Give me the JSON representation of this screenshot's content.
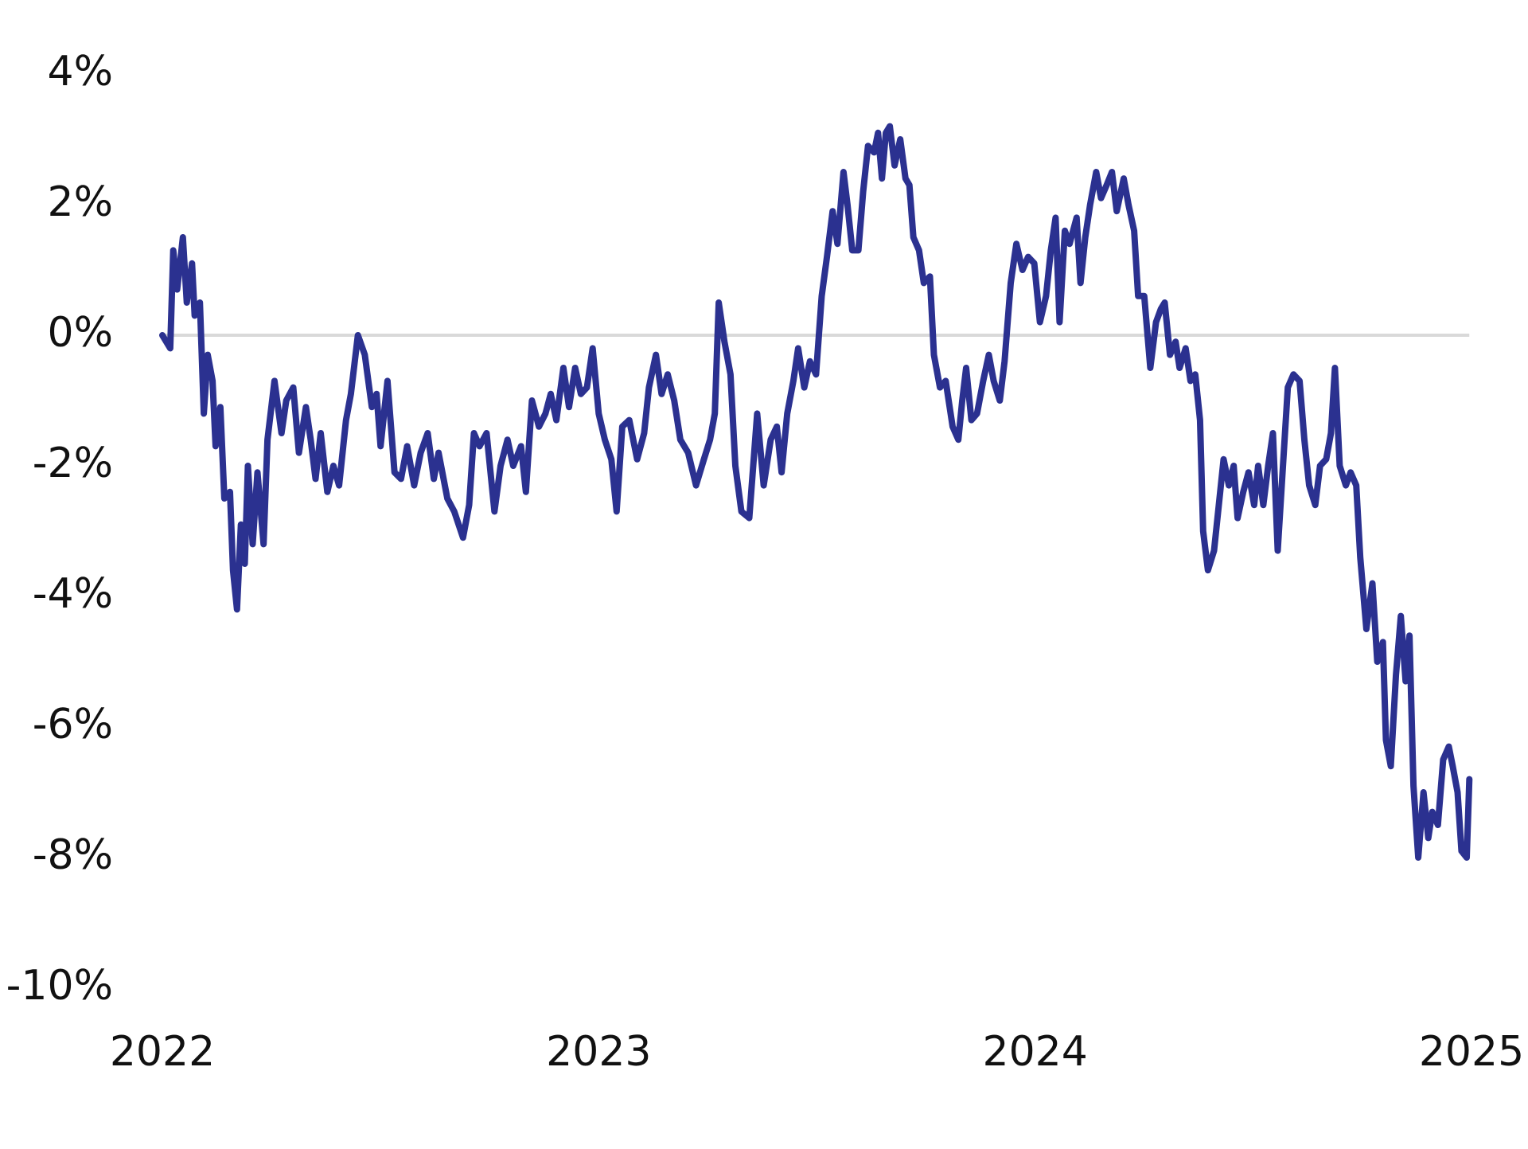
{
  "chart_data": {
    "type": "line",
    "color": "#2b3190",
    "hline": 0,
    "xlim": [
      2022,
      2025
    ],
    "xticks": [
      2022,
      2023,
      2024,
      2025
    ],
    "ylim": [
      -10,
      4
    ],
    "yticks": [
      {
        "value": 4,
        "label": "4%"
      },
      {
        "value": 2,
        "label": "2%"
      },
      {
        "value": 0,
        "label": "0%"
      },
      {
        "value": -2,
        "label": "-2%"
      },
      {
        "value": -4,
        "label": "-4%"
      },
      {
        "value": -6,
        "label": "-6%"
      },
      {
        "value": -8,
        "label": "-8%"
      },
      {
        "value": -10,
        "label": "-10%"
      }
    ],
    "x": [
      2022.0,
      2022.018,
      2022.025,
      2022.034,
      2022.047,
      2022.056,
      2022.068,
      2022.074,
      2022.086,
      2022.095,
      2022.104,
      2022.115,
      2022.122,
      2022.133,
      2022.142,
      2022.155,
      2022.162,
      2022.171,
      2022.18,
      2022.189,
      2022.196,
      2022.207,
      2022.218,
      2022.232,
      2022.241,
      2022.257,
      2022.273,
      2022.284,
      2022.3,
      2022.313,
      2022.329,
      2022.34,
      2022.351,
      2022.363,
      2022.378,
      2022.392,
      2022.405,
      2022.421,
      2022.432,
      2022.448,
      2022.464,
      2022.48,
      2022.491,
      2022.5,
      2022.516,
      2022.532,
      2022.547,
      2022.561,
      2022.577,
      2022.592,
      2022.608,
      2022.622,
      2022.633,
      2022.653,
      2022.669,
      2022.689,
      2022.703,
      2022.714,
      2022.727,
      2022.743,
      2022.761,
      2022.775,
      2022.791,
      2022.804,
      2022.822,
      2022.833,
      2022.847,
      2022.863,
      2022.878,
      2022.89,
      2022.903,
      2022.919,
      2022.932,
      2022.946,
      2022.959,
      2022.973,
      2022.986,
      2023.0,
      2023.014,
      2023.029,
      2023.041,
      2023.054,
      2023.07,
      2023.088,
      2023.104,
      2023.115,
      2023.131,
      2023.144,
      2023.158,
      2023.173,
      2023.187,
      2023.205,
      2023.223,
      2023.241,
      2023.255,
      2023.266,
      2023.275,
      2023.288,
      2023.302,
      2023.313,
      2023.327,
      2023.345,
      2023.363,
      2023.378,
      2023.394,
      2023.408,
      2023.419,
      2023.432,
      2023.446,
      2023.457,
      2023.471,
      2023.484,
      2023.498,
      2023.511,
      2023.523,
      2023.536,
      2023.547,
      2023.561,
      2023.57,
      2023.581,
      2023.595,
      2023.606,
      2023.617,
      2023.631,
      2023.64,
      2023.649,
      2023.658,
      2023.667,
      2023.678,
      2023.691,
      2023.703,
      2023.712,
      2023.721,
      2023.734,
      2023.745,
      2023.759,
      2023.768,
      2023.782,
      2023.795,
      2023.811,
      2023.824,
      2023.833,
      2023.842,
      2023.854,
      2023.867,
      2023.881,
      2023.894,
      2023.905,
      2023.919,
      2023.93,
      2023.944,
      2023.957,
      2023.971,
      2023.984,
      2023.998,
      2024.011,
      2024.025,
      2024.036,
      2024.047,
      2024.056,
      2024.068,
      2024.079,
      2024.095,
      2024.104,
      2024.115,
      2024.126,
      2024.14,
      2024.151,
      2024.164,
      2024.176,
      2024.187,
      2024.203,
      2024.214,
      2024.227,
      2024.236,
      2024.25,
      2024.264,
      2024.277,
      2024.288,
      2024.297,
      2024.309,
      2024.322,
      2024.331,
      2024.345,
      2024.356,
      2024.367,
      2024.378,
      2024.385,
      2024.396,
      2024.41,
      2024.421,
      2024.432,
      2024.444,
      2024.455,
      2024.464,
      2024.477,
      2024.489,
      2024.502,
      2024.511,
      2024.523,
      2024.534,
      2024.545,
      2024.556,
      2024.568,
      2024.579,
      2024.592,
      2024.606,
      2024.617,
      2024.628,
      2024.642,
      2024.653,
      2024.667,
      2024.678,
      2024.687,
      2024.698,
      2024.712,
      2024.723,
      2024.736,
      2024.745,
      2024.759,
      2024.773,
      2024.784,
      2024.797,
      2024.804,
      2024.815,
      2024.827,
      2024.838,
      2024.849,
      2024.858,
      2024.867,
      2024.878,
      2024.89,
      2024.901,
      2024.91,
      2024.923,
      2024.935,
      2024.948,
      2024.957,
      2024.968,
      2024.977,
      2024.989,
      2024.995
    ],
    "values": [
      0,
      -0.2,
      1.3,
      0.7,
      1.5,
      0.5,
      1.1,
      0.3,
      0.5,
      -1.2,
      -0.3,
      -0.7,
      -1.7,
      -1.1,
      -2.5,
      -2.4,
      -3.6,
      -4.2,
      -2.9,
      -3.5,
      -2.0,
      -3.2,
      -2.1,
      -3.2,
      -1.6,
      -0.7,
      -1.5,
      -1.0,
      -0.8,
      -1.8,
      -1.1,
      -1.6,
      -2.2,
      -1.5,
      -2.4,
      -2.0,
      -2.3,
      -1.3,
      -0.9,
      0,
      -0.3,
      -1.1,
      -0.9,
      -1.7,
      -0.7,
      -2.1,
      -2.2,
      -1.7,
      -2.3,
      -1.8,
      -1.5,
      -2.2,
      -1.8,
      -2.5,
      -2.7,
      -3.1,
      -2.6,
      -1.5,
      -1.7,
      -1.5,
      -2.7,
      -2.0,
      -1.6,
      -2.0,
      -1.7,
      -2.4,
      -1.0,
      -1.4,
      -1.2,
      -0.9,
      -1.3,
      -0.5,
      -1.1,
      -0.5,
      -0.9,
      -0.8,
      -0.2,
      -1.2,
      -1.6,
      -1.9,
      -2.7,
      -1.4,
      -1.3,
      -1.9,
      -1.5,
      -0.8,
      -0.3,
      -0.9,
      -0.6,
      -1.0,
      -1.6,
      -1.8,
      -2.3,
      -1.9,
      -1.6,
      -1.2,
      0.5,
      -0.1,
      -0.6,
      -2.0,
      -2.7,
      -2.8,
      -1.2,
      -2.3,
      -1.6,
      -1.4,
      -2.1,
      -1.2,
      -0.7,
      -0.2,
      -0.8,
      -0.4,
      -0.6,
      0.6,
      1.2,
      1.9,
      1.4,
      2.5,
      2.0,
      1.3,
      1.3,
      2.2,
      2.9,
      2.8,
      3.1,
      2.4,
      3.1,
      3.2,
      2.6,
      3.0,
      2.4,
      2.3,
      1.5,
      1.3,
      0.8,
      0.9,
      -0.3,
      -0.8,
      -0.7,
      -1.4,
      -1.6,
      -1.0,
      -0.5,
      -1.3,
      -1.2,
      -0.7,
      -0.3,
      -0.7,
      -1.0,
      -0.4,
      0.8,
      1.4,
      1.0,
      1.2,
      1.1,
      0.2,
      0.6,
      1.3,
      1.8,
      0.2,
      1.6,
      1.4,
      1.8,
      0.8,
      1.5,
      2.0,
      2.5,
      2.1,
      2.3,
      2.5,
      1.9,
      2.4,
      2.0,
      1.6,
      0.6,
      0.6,
      -0.5,
      0.2,
      0.4,
      0.5,
      -0.3,
      -0.1,
      -0.5,
      -0.2,
      -0.7,
      -0.6,
      -1.3,
      -3.0,
      -3.6,
      -3.3,
      -2.6,
      -1.9,
      -2.3,
      -2.0,
      -2.8,
      -2.4,
      -2.1,
      -2.6,
      -2.0,
      -2.6,
      -2.0,
      -1.5,
      -3.3,
      -2.0,
      -0.8,
      -0.6,
      -0.7,
      -1.6,
      -2.3,
      -2.6,
      -2.0,
      -1.9,
      -1.5,
      -0.5,
      -2.0,
      -2.3,
      -2.1,
      -2.3,
      -3.4,
      -4.5,
      -3.8,
      -5.0,
      -4.7,
      -6.2,
      -6.6,
      -5.2,
      -4.3,
      -5.3,
      -4.6,
      -6.9,
      -8.0,
      -7.0,
      -7.7,
      -7.3,
      -7.5,
      -6.5,
      -6.3,
      -6.6,
      -7.0,
      -7.9,
      -8.0,
      -6.8
    ]
  }
}
